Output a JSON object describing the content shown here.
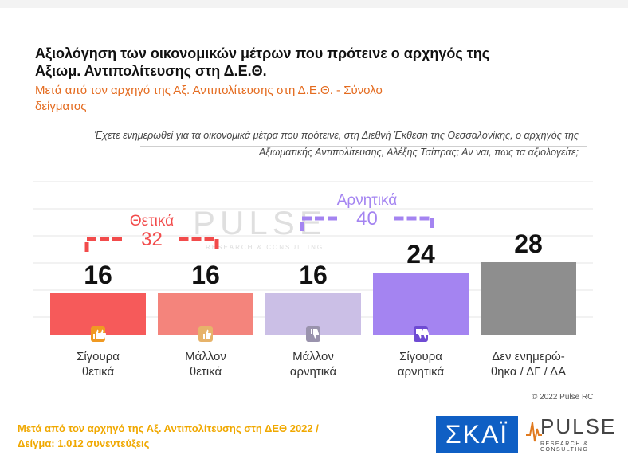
{
  "title": "Αξιολόγηση των οικονομικών μέτρων που πρότεινε ο αρχηγός της Αξιωμ. Αντιπολίτευσης στη Δ.Ε.Θ.",
  "subtitle": "Μετά από τον αρχηγό της Αξ. Αντιπολίτευσης στη Δ.Ε.Θ. - Σύνολο δείγματος",
  "question": "Έχετε ενημερωθεί για τα οικονομικά μέτρα που πρότεινε, στη Διεθνή Έκθεση της Θεσσαλονίκης, ο αρχηγός της Αξιωματικής Αντιπολίτευσης, Αλέξης Τσίπρας; Αν ναι, πως τα αξιολογείτε;",
  "watermark": "PULSE",
  "watermark_sub": "RESEARCH & CONSULTING",
  "copyright": "© 2022 Pulse RC",
  "footer": {
    "line1": "Μετά από τον αρχηγό της Αξ. Αντιπολίτευσης στη ΔΕΘ  2022  /",
    "line2": "Δείγμα:  1.012 συνεντεύξεις"
  },
  "logos": {
    "skai": "ΣΚΑΪ",
    "pulse": "PULSE",
    "pulse_sub": "RESEARCH & CONSULTING"
  },
  "chart_data": {
    "type": "bar",
    "title": "Αξιολόγηση των οικονομικών μέτρων που πρότεινε ο αρχηγός της Αξιωμ. Αντιπολίτευσης στη Δ.Ε.Θ.",
    "categories": [
      "Σίγουρα θετικά",
      "Μάλλον θετικά",
      "Μάλλον αρνητικά",
      "Σίγουρα αρνητικά",
      "Δεν ενημερώ-θηκα / ΔΓ / ΔΑ"
    ],
    "category_lines": [
      [
        "Σίγουρα",
        "θετικά"
      ],
      [
        "Μάλλον",
        "θετικά"
      ],
      [
        "Μάλλον",
        "αρνητικά"
      ],
      [
        "Σίγουρα",
        "αρνητικά"
      ],
      [
        "Δεν ενημερώ-",
        "θηκα / ΔΓ / ΔΑ"
      ]
    ],
    "values": [
      16,
      16,
      16,
      24,
      28
    ],
    "value_labels": [
      "16",
      "16",
      "16",
      "24",
      "28"
    ],
    "colors": [
      "#f65a5a",
      "#f4847c",
      "#cbbfe6",
      "#a484f1",
      "#8e8e8e"
    ],
    "icon_colors": [
      "#f09a22",
      "#e7b36a",
      "#9a93ad",
      "#6f4bd3",
      ""
    ],
    "icons": [
      "double-thumbs-up-icon",
      "thumb-up-icon",
      "thumb-down-icon",
      "double-thumbs-down-icon",
      ""
    ],
    "ylim": [
      0,
      30
    ],
    "xlabel": "",
    "ylabel": "",
    "grid": true,
    "groups": [
      {
        "label": "Θετικά",
        "total": "32",
        "color": "#f24b4b",
        "from": 0,
        "to": 1
      },
      {
        "label": "Αρνητικά",
        "total": "40",
        "color": "#a484f1",
        "from": 2,
        "to": 3
      }
    ]
  }
}
